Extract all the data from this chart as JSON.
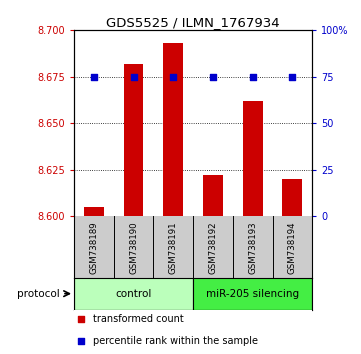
{
  "title": "GDS5525 / ILMN_1767934",
  "samples": [
    "GSM738189",
    "GSM738190",
    "GSM738191",
    "GSM738192",
    "GSM738193",
    "GSM738194"
  ],
  "bar_values": [
    8.605,
    8.682,
    8.693,
    8.622,
    8.662,
    8.62
  ],
  "bar_color": "#cc0000",
  "scatter_values": [
    75,
    75,
    75,
    75,
    75,
    75
  ],
  "scatter_color": "#0000cc",
  "ylim_left": [
    8.6,
    8.7
  ],
  "yticks_left": [
    8.6,
    8.625,
    8.65,
    8.675,
    8.7
  ],
  "yticks_right": [
    0,
    25,
    50,
    75,
    100
  ],
  "ylim_right": [
    0,
    100
  ],
  "groups": [
    {
      "label": "control",
      "indices": [
        0,
        1,
        2
      ],
      "color": "#bbffbb"
    },
    {
      "label": "miR-205 silencing",
      "indices": [
        3,
        4,
        5
      ],
      "color": "#44ee44"
    }
  ],
  "protocol_label": "protocol",
  "legend_items": [
    {
      "label": "transformed count",
      "color": "#cc0000",
      "marker": "s"
    },
    {
      "label": "percentile rank within the sample",
      "color": "#0000cc",
      "marker": "s"
    }
  ],
  "left_tick_color": "#cc0000",
  "right_tick_color": "#0000cc",
  "bar_baseline": 8.6,
  "background_color": "#ffffff",
  "grid_color": "#000000",
  "label_bg": "#cccccc"
}
